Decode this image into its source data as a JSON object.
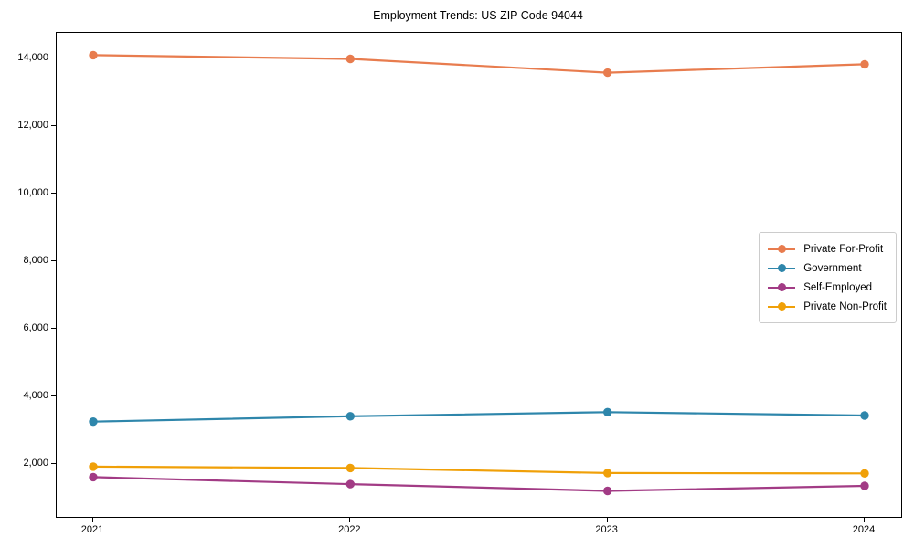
{
  "chart_data": {
    "type": "line",
    "title": "Employment Trends: US ZIP Code 94044",
    "categories": [
      "2021",
      "2022",
      "2023",
      "2024"
    ],
    "series": [
      {
        "name": "Private For-Profit",
        "color": "#E87C4E",
        "values": [
          14100,
          13990,
          13580,
          13830
        ]
      },
      {
        "name": "Government",
        "color": "#2E86AB",
        "values": [
          3250,
          3410,
          3530,
          3430
        ]
      },
      {
        "name": "Self-Employed",
        "color": "#A23B85",
        "values": [
          1610,
          1400,
          1200,
          1350
        ]
      },
      {
        "name": "Private Non-Profit",
        "color": "#F0A008",
        "values": [
          1920,
          1880,
          1730,
          1720
        ]
      }
    ],
    "xlabel": "",
    "ylabel": "",
    "ylim": [
      430,
      14760
    ],
    "yticks": {
      "values": [
        2000,
        4000,
        6000,
        8000,
        10000,
        12000,
        14000
      ],
      "labels": [
        "2,000",
        "4,000",
        "6,000",
        "8,000",
        "10,000",
        "12,000",
        "14,000"
      ]
    },
    "grid": false,
    "legend_position": "center right",
    "marker": "circle",
    "line_width": 2.2,
    "marker_radius": 4.7,
    "axis_color": "#000000",
    "text_color": "#000000",
    "background_color": "#ffffff",
    "legend_border_color": "#cccccc"
  }
}
